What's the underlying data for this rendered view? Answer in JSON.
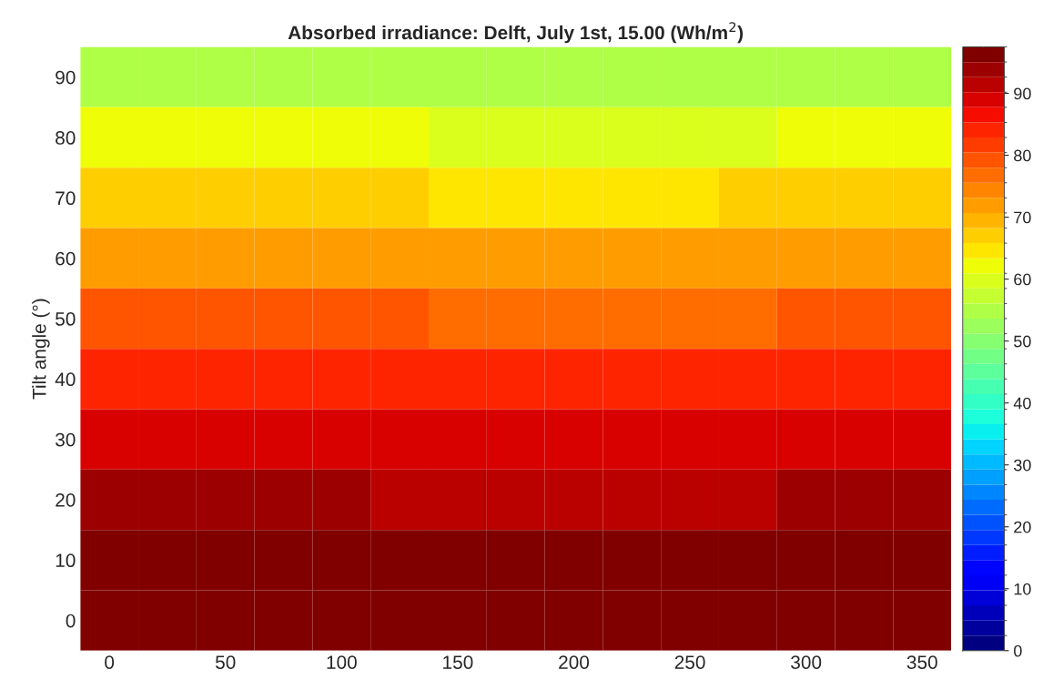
{
  "chart_data": {
    "type": "heatmap",
    "title": "Absorbed irradiance: Delft, July 1st, 15.00 (Wh/m$^{2}$)",
    "ylabel": "Tilt angle (°)",
    "categories": [
      "0",
      null,
      "50",
      null,
      "100",
      null,
      "150",
      null,
      "200",
      null,
      "250",
      null,
      "300",
      null,
      "350"
    ],
    "y_categories": [
      "90",
      "80",
      "70",
      "60",
      "50",
      "40",
      "30",
      "20",
      "10",
      "0"
    ],
    "cells": [
      [
        56,
        56,
        55.9,
        55.8,
        55.6,
        55.4,
        55.2,
        55,
        55,
        55,
        55.1,
        55.3,
        55.6,
        55.8,
        56
      ],
      [
        62,
        62,
        61.9,
        61.7,
        61.4,
        61,
        60.7,
        60.5,
        60.5,
        60.5,
        60.6,
        60.9,
        61.3,
        61.7,
        61.9
      ],
      [
        67,
        67,
        66.9,
        66.7,
        66.4,
        66,
        65.7,
        65.5,
        65.5,
        65.5,
        65.6,
        65.9,
        66.3,
        66.7,
        66.9
      ],
      [
        73,
        73,
        72.9,
        72.7,
        72.4,
        72,
        71.7,
        71.5,
        71.5,
        71.5,
        71.6,
        71.9,
        72.3,
        72.7,
        72.9
      ],
      [
        79,
        79,
        78.9,
        78.7,
        78.4,
        78,
        77.7,
        77.5,
        77.5,
        77.5,
        77.6,
        77.9,
        78.3,
        78.7,
        78.9
      ],
      [
        85,
        85,
        84.9,
        84.7,
        84.4,
        84,
        83.7,
        83.5,
        83.5,
        83.5,
        83.6,
        83.9,
        84.3,
        84.7,
        84.9
      ],
      [
        90,
        90,
        89.9,
        89.7,
        89.4,
        89,
        88.7,
        88.5,
        88.5,
        88.5,
        88.6,
        88.9,
        89.3,
        89.7,
        89.9
      ],
      [
        93.5,
        93.5,
        93.4,
        93.2,
        92.9,
        92.5,
        92.2,
        92,
        92,
        92,
        92.1,
        92.4,
        92.8,
        93.2,
        93.4
      ],
      [
        96,
        96,
        96,
        95.9,
        95.8,
        95.7,
        95.6,
        95.5,
        95.5,
        95.5,
        95.5,
        95.6,
        95.8,
        95.9,
        96
      ],
      [
        97,
        97,
        97,
        97,
        97,
        97,
        97,
        97,
        97,
        97,
        97,
        97,
        97,
        97,
        97
      ]
    ],
    "clim": [
      0,
      97.5
    ],
    "cticks": [
      0,
      10,
      20,
      30,
      40,
      50,
      60,
      70,
      80,
      90
    ]
  }
}
